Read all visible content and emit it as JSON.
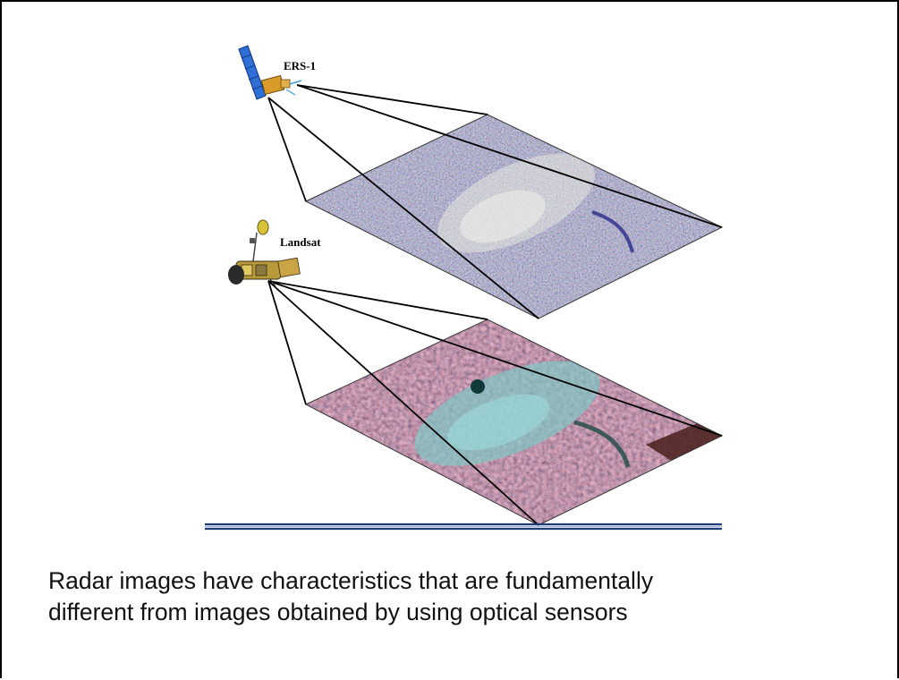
{
  "diagram": {
    "satellites": [
      {
        "label": "ERS-1"
      },
      {
        "label": "Landsat"
      }
    ],
    "colors": {
      "radar_scene": "#6f6a72",
      "optical_scene": "#8a5f66",
      "separator": "#1f3c7a",
      "projection_lines": "#000000"
    }
  },
  "caption": {
    "line1": "Radar images have characteristics that are fundamentally",
    "line2": "different from images obtained by using optical sensors"
  }
}
